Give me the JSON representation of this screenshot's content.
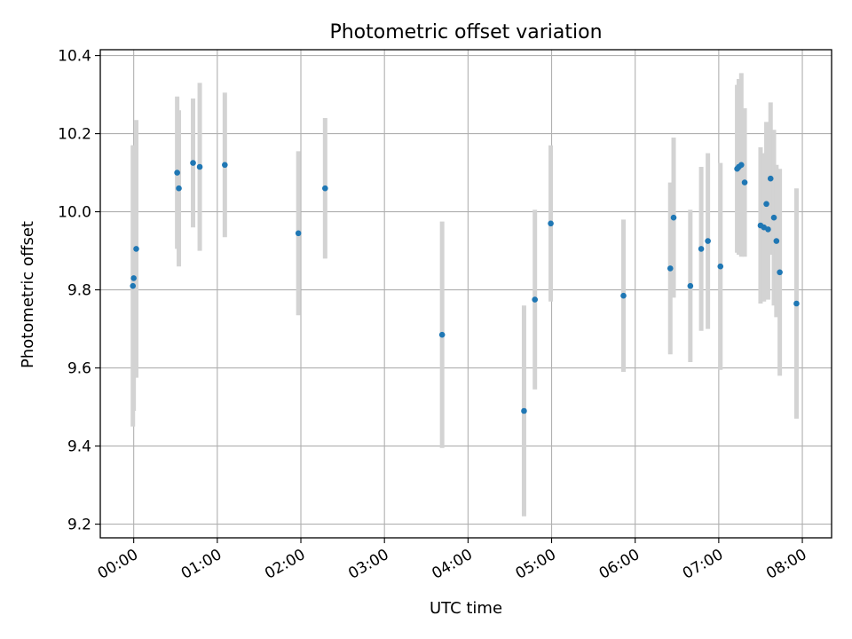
{
  "chart_data": {
    "type": "scatter",
    "title": "Photometric offset variation",
    "xlabel": "UTC time",
    "ylabel": "Photometric offset",
    "x_unit": "hours (UTC)",
    "xlim": [
      -0.4,
      8.35
    ],
    "ylim": [
      9.165,
      10.415
    ],
    "grid": true,
    "x_ticks": [
      {
        "value": 0,
        "label": "00:00"
      },
      {
        "value": 1,
        "label": "01:00"
      },
      {
        "value": 2,
        "label": "02:00"
      },
      {
        "value": 3,
        "label": "03:00"
      },
      {
        "value": 4,
        "label": "04:00"
      },
      {
        "value": 5,
        "label": "05:00"
      },
      {
        "value": 6,
        "label": "06:00"
      },
      {
        "value": 7,
        "label": "07:00"
      },
      {
        "value": 8,
        "label": "08:00"
      }
    ],
    "y_ticks": [
      {
        "value": 9.2,
        "label": "9.2"
      },
      {
        "value": 9.4,
        "label": "9.4"
      },
      {
        "value": 9.6,
        "label": "9.6"
      },
      {
        "value": 9.8,
        "label": "9.8"
      },
      {
        "value": 10.0,
        "label": "10.0"
      },
      {
        "value": 10.2,
        "label": "10.2"
      },
      {
        "value": 10.4,
        "label": "10.4"
      }
    ],
    "marker_color": "#1f77b4",
    "errorbar_color": "#d3d3d3",
    "points": [
      {
        "x": -0.01,
        "y": 9.81,
        "yerr": 0.36
      },
      {
        "x": 0.0,
        "y": 9.83,
        "yerr": 0.34
      },
      {
        "x": 0.03,
        "y": 9.905,
        "yerr": 0.33
      },
      {
        "x": 0.52,
        "y": 10.1,
        "yerr": 0.195
      },
      {
        "x": 0.54,
        "y": 10.06,
        "yerr": 0.2
      },
      {
        "x": 0.71,
        "y": 10.125,
        "yerr": 0.165
      },
      {
        "x": 0.79,
        "y": 10.115,
        "yerr": 0.215
      },
      {
        "x": 1.09,
        "y": 10.12,
        "yerr": 0.185
      },
      {
        "x": 1.97,
        "y": 9.945,
        "yerr": 0.21
      },
      {
        "x": 2.29,
        "y": 10.06,
        "yerr": 0.18
      },
      {
        "x": 3.69,
        "y": 9.685,
        "yerr": 0.29
      },
      {
        "x": 4.67,
        "y": 9.49,
        "yerr": 0.27
      },
      {
        "x": 4.8,
        "y": 9.775,
        "yerr": 0.23
      },
      {
        "x": 4.99,
        "y": 9.97,
        "yerr": 0.2
      },
      {
        "x": 5.86,
        "y": 9.785,
        "yerr": 0.195
      },
      {
        "x": 6.42,
        "y": 9.855,
        "yerr": 0.22
      },
      {
        "x": 6.46,
        "y": 9.985,
        "yerr": 0.205
      },
      {
        "x": 6.66,
        "y": 9.81,
        "yerr": 0.195
      },
      {
        "x": 6.79,
        "y": 9.905,
        "yerr": 0.21
      },
      {
        "x": 6.87,
        "y": 9.925,
        "yerr": 0.225
      },
      {
        "x": 7.02,
        "y": 9.86,
        "yerr": 0.265
      },
      {
        "x": 7.22,
        "y": 10.11,
        "yerr": 0.215
      },
      {
        "x": 7.24,
        "y": 10.115,
        "yerr": 0.225
      },
      {
        "x": 7.27,
        "y": 10.12,
        "yerr": 0.235
      },
      {
        "x": 7.31,
        "y": 10.075,
        "yerr": 0.19
      },
      {
        "x": 7.5,
        "y": 9.965,
        "yerr": 0.2
      },
      {
        "x": 7.54,
        "y": 9.96,
        "yerr": 0.19
      },
      {
        "x": 7.57,
        "y": 10.02,
        "yerr": 0.21
      },
      {
        "x": 7.59,
        "y": 9.955,
        "yerr": 0.18
      },
      {
        "x": 7.62,
        "y": 10.085,
        "yerr": 0.195
      },
      {
        "x": 7.66,
        "y": 9.985,
        "yerr": 0.225
      },
      {
        "x": 7.69,
        "y": 9.925,
        "yerr": 0.195
      },
      {
        "x": 7.73,
        "y": 9.845,
        "yerr": 0.265
      },
      {
        "x": 7.93,
        "y": 9.765,
        "yerr": 0.295
      }
    ]
  }
}
